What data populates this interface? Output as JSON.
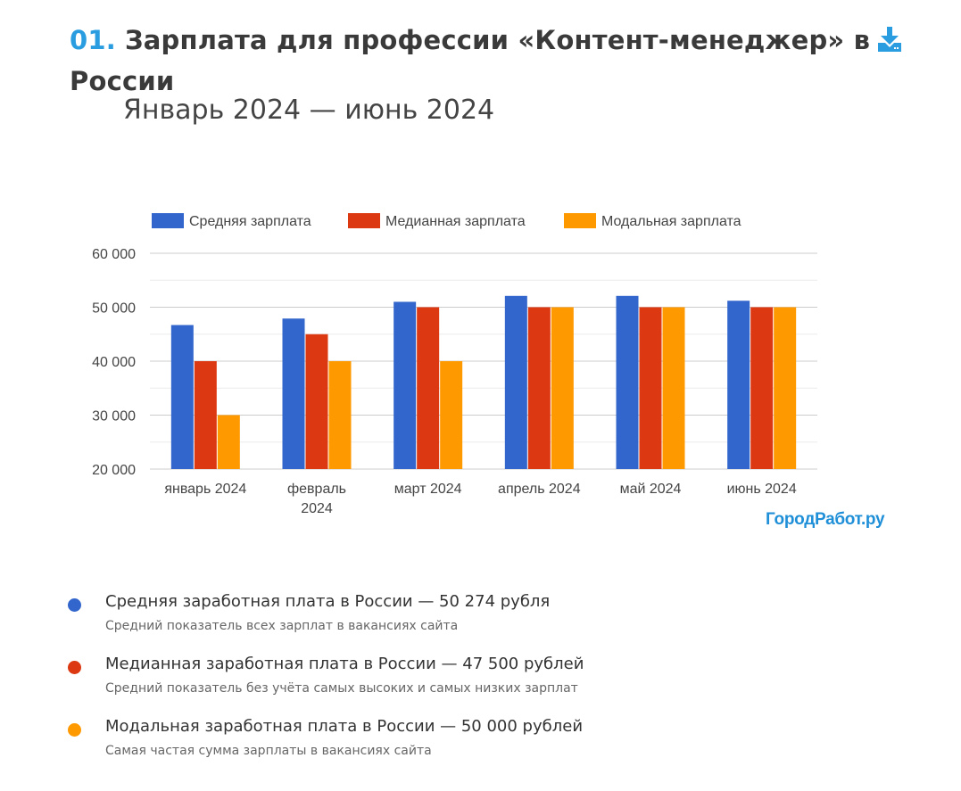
{
  "header": {
    "number": "01.",
    "title": "Зарплата для профессии «Контент-менеджер» в России",
    "subtitle": "Январь 2024 — июнь 2024",
    "download_icon": "download-icon"
  },
  "brand": "ГородРабот.ру",
  "colors": {
    "accent": "#2a9de0",
    "mean": "#3366cc",
    "median": "#dc3912",
    "mode": "#ff9900"
  },
  "chart_data": {
    "type": "bar",
    "title": "",
    "xlabel": "",
    "ylabel": "",
    "ylim": [
      20000,
      60000
    ],
    "yticks": [
      20000,
      30000,
      40000,
      50000,
      60000
    ],
    "ytick_labels": [
      "20 000",
      "30 000",
      "40 000",
      "50 000",
      "60 000"
    ],
    "grid": true,
    "legend_position": "top",
    "categories": [
      "январь 2024",
      "февраль 2024",
      "март 2024",
      "апрель 2024",
      "май 2024",
      "июнь 2024"
    ],
    "series": [
      {
        "name": "Средняя зарплата",
        "color": "#3366cc",
        "values": [
          46700,
          47900,
          51000,
          52100,
          52100,
          51200
        ]
      },
      {
        "name": "Медианная зарплата",
        "color": "#dc3912",
        "values": [
          40000,
          45000,
          50000,
          50000,
          50000,
          50000
        ]
      },
      {
        "name": "Модальная зарплата",
        "color": "#ff9900",
        "values": [
          30000,
          40000,
          40000,
          50000,
          50000,
          50000
        ]
      }
    ]
  },
  "notes": [
    {
      "title": "Средняя заработная плата в России — 50 274 рубля",
      "desc": "Средний показатель всех зарплат в вакансиях сайта",
      "color": "#3366cc"
    },
    {
      "title": "Медианная заработная плата в России — 47 500 рублей",
      "desc": "Средний показатель без учёта самых высоких и самых низких зарплат",
      "color": "#dc3912"
    },
    {
      "title": "Модальная заработная плата в России — 50 000 рублей",
      "desc": "Самая частая сумма зарплаты в вакансиях сайта",
      "color": "#ff9900"
    }
  ]
}
